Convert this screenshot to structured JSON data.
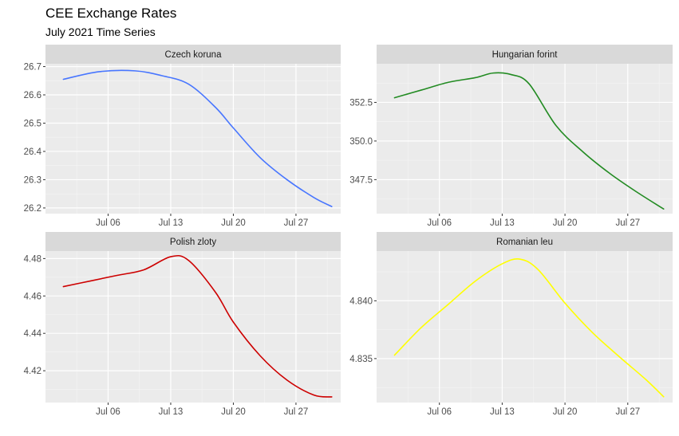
{
  "title": "CEE Exchange Rates",
  "subtitle": "July 2021 Time Series",
  "chart_data": [
    {
      "type": "line",
      "panel": "Czech koruna",
      "color": "#4876FF",
      "x": [
        "Jul 01",
        "Jul 05",
        "Jul 09",
        "Jul 12",
        "Jul 15",
        "Jul 18",
        "Jul 20",
        "Jul 23",
        "Jul 26",
        "Jul 29",
        "Jul 31"
      ],
      "values": [
        26.655,
        26.682,
        26.685,
        26.668,
        26.638,
        26.556,
        26.483,
        26.378,
        26.3,
        26.237,
        26.205
      ],
      "x_ticks": [
        "Jul 06",
        "Jul 13",
        "Jul 20",
        "Jul 27"
      ],
      "y_ticks": [
        "26.2",
        "26.3",
        "26.4",
        "26.5",
        "26.6",
        "26.7"
      ],
      "ylim": [
        26.18,
        26.71
      ],
      "xlim": [
        "Jun 29",
        "Aug 01"
      ]
    },
    {
      "type": "line",
      "panel": "Hungarian forint",
      "color": "#228B22",
      "x": [
        "Jul 01",
        "Jul 04",
        "Jul 07",
        "Jul 10",
        "Jul 12",
        "Jul 14",
        "Jul 16",
        "Jul 19",
        "Jul 22",
        "Jul 25",
        "Jul 28",
        "Jul 31"
      ],
      "values": [
        352.8,
        353.3,
        353.8,
        354.1,
        354.4,
        354.3,
        353.7,
        351.0,
        349.3,
        347.9,
        346.7,
        345.6
      ],
      "x_ticks": [
        "Jul 06",
        "Jul 13",
        "Jul 20",
        "Jul 27"
      ],
      "y_ticks": [
        "347.5",
        "350.0",
        "352.5"
      ],
      "ylim": [
        345.3,
        355.0
      ],
      "xlim": [
        "Jun 29",
        "Aug 01"
      ]
    },
    {
      "type": "line",
      "panel": "Polish zloty",
      "color": "#CD0000",
      "x": [
        "Jul 01",
        "Jul 04",
        "Jul 07",
        "Jul 10",
        "Jul 13",
        "Jul 15",
        "Jul 18",
        "Jul 20",
        "Jul 23",
        "Jul 26",
        "Jul 29",
        "Jul 31"
      ],
      "values": [
        4.465,
        4.468,
        4.471,
        4.474,
        4.481,
        4.479,
        4.462,
        4.446,
        4.428,
        4.415,
        4.407,
        4.406
      ],
      "x_ticks": [
        "Jul 06",
        "Jul 13",
        "Jul 20",
        "Jul 27"
      ],
      "y_ticks": [
        "4.42",
        "4.44",
        "4.46",
        "4.48"
      ],
      "ylim": [
        4.403,
        4.484
      ],
      "xlim": [
        "Jun 29",
        "Aug 01"
      ]
    },
    {
      "type": "line",
      "panel": "Romanian leu",
      "color": "#FFFF00",
      "x": [
        "Jul 01",
        "Jul 04",
        "Jul 07",
        "Jul 10",
        "Jul 13",
        "Jul 15",
        "Jul 17",
        "Jul 20",
        "Jul 23",
        "Jul 26",
        "Jul 29",
        "Jul 31"
      ],
      "values": [
        4.8353,
        4.8377,
        4.8397,
        4.8417,
        4.8432,
        4.8436,
        4.8427,
        4.8398,
        4.8373,
        4.8352,
        4.8332,
        4.8317
      ],
      "x_ticks": [
        "Jul 06",
        "Jul 13",
        "Jul 20",
        "Jul 27"
      ],
      "y_ticks": [
        "4.835",
        "4.840"
      ],
      "ylim": [
        4.8312,
        4.8443
      ],
      "xlim": [
        "Jun 29",
        "Aug 01"
      ]
    }
  ]
}
